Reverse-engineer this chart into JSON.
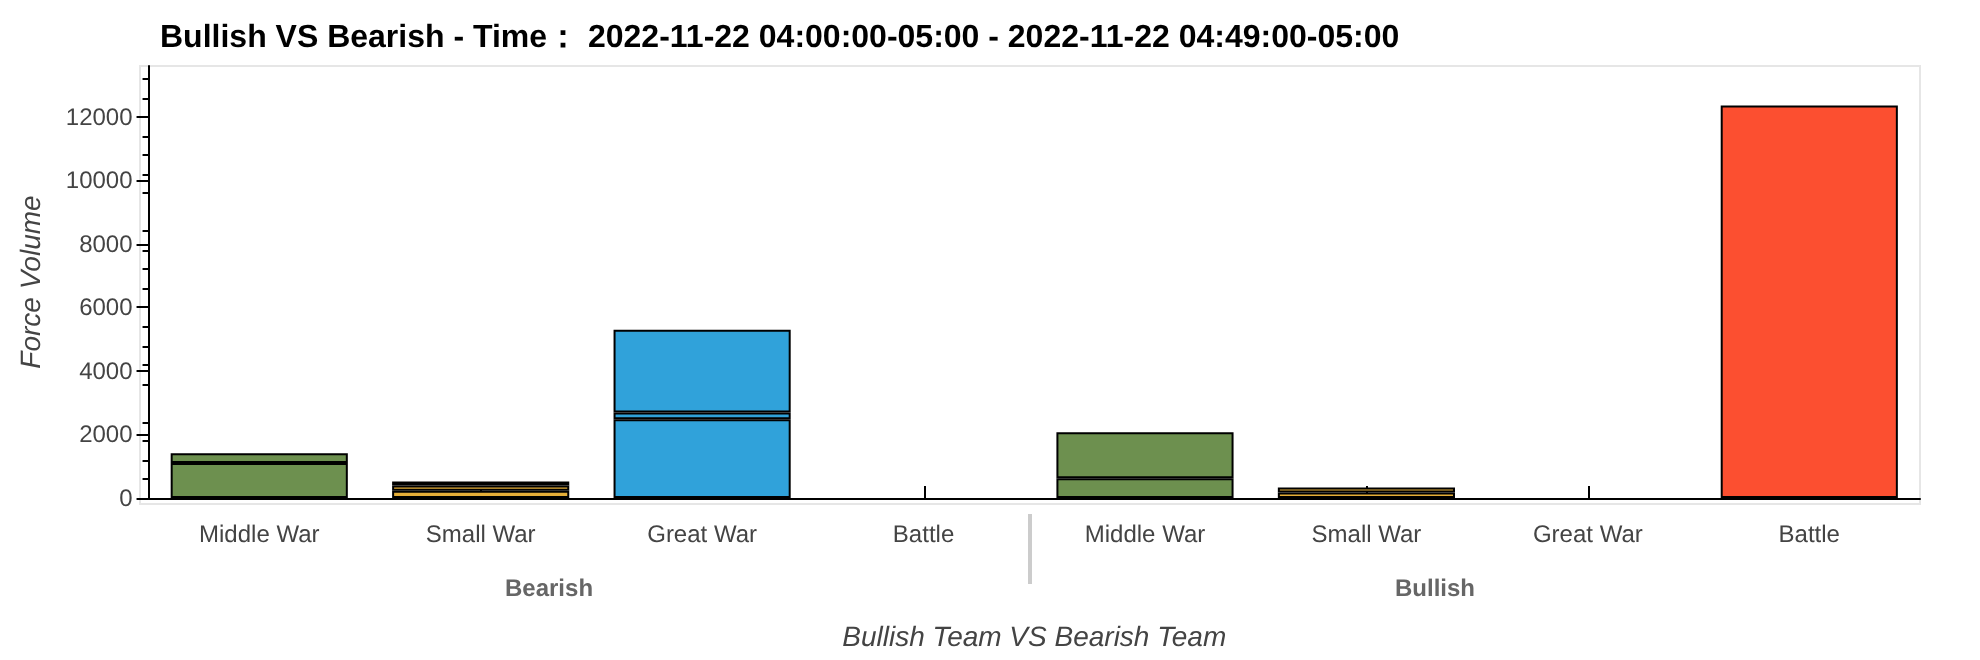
{
  "chart_data": {
    "type": "bar",
    "title": "Bullish VS Bearish - Time： 2022-11-22 04:00:00-05:00 - 2022-11-22 04:49:00-05:00",
    "xlabel": "Bullish Team VS Bearish Team",
    "ylabel": "Force Volume",
    "categories": [
      "Middle War",
      "Small War",
      "Great War",
      "Battle",
      "Middle War",
      "Small War",
      "Great War",
      "Battle"
    ],
    "annotations": [
      "Bearish",
      "Bullish"
    ],
    "stacked": true,
    "series": [
      {
        "colors": [
          "#6d904f",
          "#e5ae38",
          "#30a2da",
          null,
          "#6d904f",
          "#e5ae38",
          null,
          "#fc4f30"
        ],
        "values": [
          1100,
          230,
          2480,
          null,
          620,
          170,
          null,
          12360
        ]
      },
      {
        "colors": [
          "#6d904f",
          "#e5ae38",
          "#30a2da",
          null,
          "#6d904f",
          "#e5ae38",
          null,
          null
        ],
        "values": [
          310,
          160,
          210,
          null,
          1450,
          160,
          null,
          null
        ]
      },
      {
        "colors": [
          null,
          "#e5ae38",
          "#30a2da",
          null,
          null,
          null,
          null,
          null
        ],
        "values": [
          null,
          130,
          2610,
          null,
          null,
          null,
          null,
          null
        ]
      }
    ],
    "ylim": [
      0,
      13600
    ],
    "yticks": [
      0,
      2000,
      4000,
      6000,
      8000,
      10000,
      12000
    ],
    "grid": false
  }
}
